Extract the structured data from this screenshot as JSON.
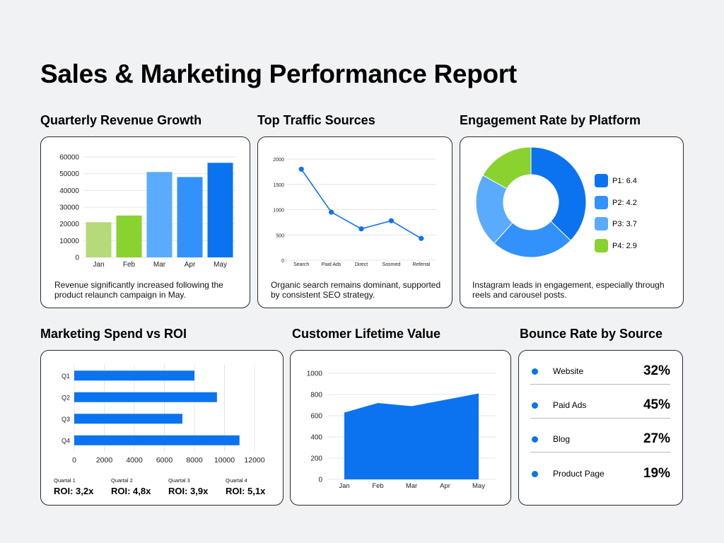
{
  "report": {
    "title": "Sales & Marketing Performance Report"
  },
  "sections": {
    "revenue": {
      "title": "Quarterly Revenue Growth",
      "caption": "Revenue significantly increased following the product relaunch campaign in May."
    },
    "traffic": {
      "title": "Top Traffic Sources",
      "caption": "Organic search remains dominant, supported by consistent SEO strategy."
    },
    "engagement": {
      "title": "Engagement Rate by Platform",
      "caption": "Instagram leads in engagement, especially through reels and carousel posts."
    },
    "spend": {
      "title": "Marketing Spend vs ROI"
    },
    "clv": {
      "title": "Customer Lifetime Value"
    },
    "bounce": {
      "title": "Bounce Rate by Source"
    }
  },
  "roi": [
    {
      "quarter": "Quartal 1",
      "value": "ROI: 3,2x"
    },
    {
      "quarter": "Quartal 2",
      "value": "ROI: 4,8x"
    },
    {
      "quarter": "Quartal 3",
      "value": "ROI: 3,9x"
    },
    {
      "quarter": "Quartal 4",
      "value": "ROI: 5,1x"
    }
  ],
  "bounce_rows": [
    {
      "label": "Website",
      "value": "32%"
    },
    {
      "label": "Paid Ads",
      "value": "45%"
    },
    {
      "label": "Blog",
      "value": "27%"
    },
    {
      "label": "Product Page",
      "value": "19%"
    }
  ],
  "colors": {
    "primary": "#0b73ef",
    "light_blue": "#5aabfd",
    "mid_blue": "#3391fb",
    "light_green": "#b6d97a",
    "green": "#89d22f"
  },
  "chart_data": [
    {
      "id": "revenue",
      "type": "bar",
      "categories": [
        "Jan",
        "Feb",
        "Mar",
        "Apr",
        "May"
      ],
      "values": [
        21000,
        25000,
        51000,
        48000,
        56500
      ],
      "colors": [
        "#b6d97a",
        "#89d22f",
        "#5aabfd",
        "#3391fb",
        "#0b73ef"
      ],
      "ylim": [
        0,
        60000
      ],
      "yticks": [
        0,
        10000,
        20000,
        30000,
        40000,
        50000,
        60000
      ],
      "grid": true
    },
    {
      "id": "traffic",
      "type": "line",
      "categories": [
        "Search",
        "Paid Ads",
        "Direct",
        "Sosmed",
        "Referral"
      ],
      "values": [
        1800,
        950,
        620,
        780,
        430
      ],
      "ylim": [
        0,
        2000
      ],
      "yticks": [
        0,
        500,
        1000,
        1500,
        2000
      ],
      "grid": true
    },
    {
      "id": "engagement",
      "type": "pie",
      "donut": true,
      "labels": [
        "P1: 6.4",
        "P2: 4.2",
        "P3: 3.7",
        "P4: 2.9"
      ],
      "values": [
        6.4,
        4.2,
        3.7,
        2.9
      ],
      "colors": [
        "#0b73ef",
        "#3391fb",
        "#5aabfd",
        "#89d22f"
      ],
      "legend": "right"
    },
    {
      "id": "spend",
      "type": "bar",
      "orientation": "horizontal",
      "categories": [
        "Q1",
        "Q2",
        "Q3",
        "Q4"
      ],
      "values": [
        8000,
        9500,
        7200,
        11000
      ],
      "xlim": [
        0,
        12000
      ],
      "xticks": [
        0,
        2000,
        4000,
        6000,
        8000,
        10000,
        12000
      ],
      "grid": true
    },
    {
      "id": "clv",
      "type": "area",
      "categories": [
        "Jan",
        "Feb",
        "Mar",
        "Apr",
        "May"
      ],
      "values": [
        630,
        720,
        690,
        750,
        810
      ],
      "ylim": [
        0,
        1000
      ],
      "yticks": [
        0,
        200,
        400,
        600,
        800,
        1000
      ],
      "grid": true
    }
  ]
}
